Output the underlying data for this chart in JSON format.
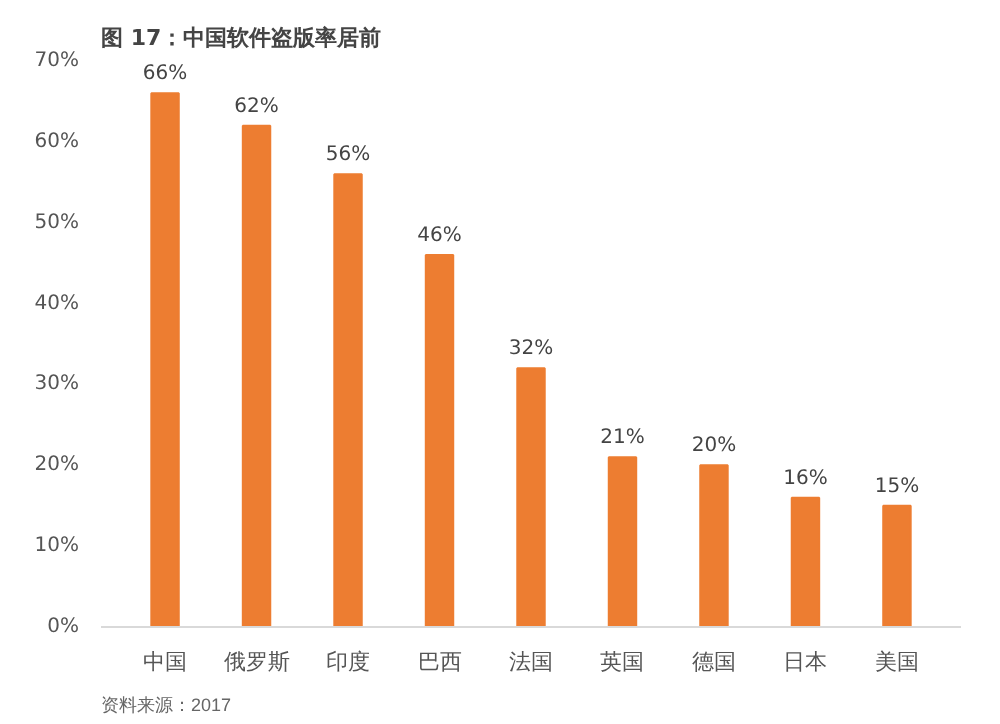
{
  "chart_data": {
    "type": "bar",
    "title": "图 17：中国软件盗版率居前",
    "categories": [
      "中国",
      "俄罗斯",
      "印度",
      "巴西",
      "法国",
      "英国",
      "德国",
      "日本",
      "美国"
    ],
    "series": [
      {
        "color": "#ed7d31",
        "values": [
          66,
          62,
          56,
          46,
          32,
          21,
          20,
          16,
          15
        ],
        "value_labels": [
          "66%",
          "62%",
          "56%",
          "46%",
          "32%",
          "21%",
          "20%",
          "16%",
          "15%"
        ]
      }
    ],
    "ylim": [
      0,
      70
    ],
    "yticks": [
      {
        "value": 0,
        "label": "0%"
      },
      {
        "value": 10,
        "label": "10%"
      },
      {
        "value": 20,
        "label": "20%"
      },
      {
        "value": 30,
        "label": "30%"
      },
      {
        "value": 40,
        "label": "40%"
      },
      {
        "value": 50,
        "label": "50%"
      },
      {
        "value": 60,
        "label": "60%"
      },
      {
        "value": 70,
        "label": "70%"
      }
    ],
    "annotations": [
      "资料来源：2017"
    ]
  }
}
